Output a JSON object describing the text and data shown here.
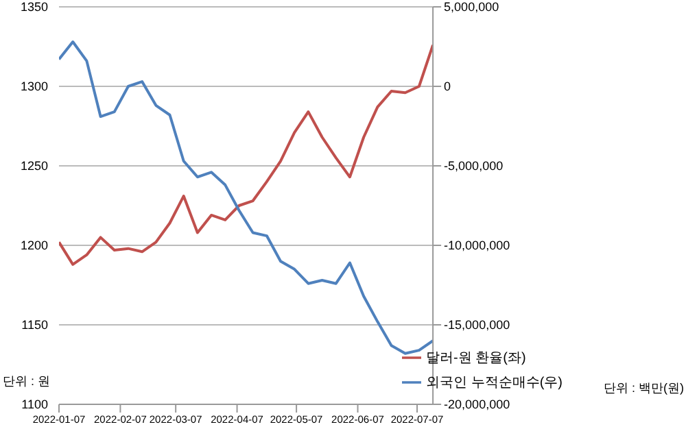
{
  "chart_data": {
    "type": "line",
    "x": [
      "2022-01-07",
      "2022-01-14",
      "2022-01-21",
      "2022-01-28",
      "2022-02-04",
      "2022-02-11",
      "2022-02-18",
      "2022-02-25",
      "2022-03-04",
      "2022-03-11",
      "2022-03-18",
      "2022-03-25",
      "2022-04-01",
      "2022-04-08",
      "2022-04-15",
      "2022-04-22",
      "2022-04-29",
      "2022-05-06",
      "2022-05-13",
      "2022-05-20",
      "2022-05-27",
      "2022-06-03",
      "2022-06-10",
      "2022-06-17",
      "2022-06-24",
      "2022-07-01",
      "2022-07-08",
      "2022-07-15"
    ],
    "series": [
      {
        "name": "달러-원 환율(좌)",
        "color": "#c0504d",
        "values": [
          1202,
          1188,
          1194,
          1205,
          1197,
          1198,
          1196,
          1202,
          1214,
          1231,
          1208,
          1219,
          1216,
          1225,
          1228,
          1240,
          1253,
          1271,
          1284,
          1268,
          1255,
          1243,
          1268,
          1287,
          1297,
          1296,
          1300,
          1326
        ]
      },
      {
        "name": "외국인 누적순매수(우)",
        "color": "#4f81bd",
        "axis": "y2",
        "values": [
          1700000,
          2800000,
          1600000,
          -1900000,
          -1600000,
          0,
          300000,
          -1200000,
          -1800000,
          -4700000,
          -5700000,
          -5400000,
          -6200000,
          -7800000,
          -9200000,
          -9400000,
          -11000000,
          -11500000,
          -12400000,
          -12200000,
          -12400000,
          -11100000,
          -13200000,
          -14800000,
          -16300000,
          -16800000,
          -16600000,
          -16000000
        ]
      }
    ],
    "xlim": [
      "2022-01-07",
      "2022-07-15"
    ],
    "xticks": [
      "2022-01-07",
      "2022-02-07",
      "2022-03-07",
      "2022-04-07",
      "2022-05-07",
      "2022-06-07",
      "2022-07-07"
    ],
    "ylim": [
      1100,
      1350
    ],
    "yticks": [
      1100,
      1150,
      1200,
      1250,
      1300,
      1350
    ],
    "y2lim": [
      -20000000,
      5000000
    ],
    "y2ticks": [
      {
        "value": -20000000,
        "label": "-20,000,000"
      },
      {
        "value": -15000000,
        "label": "-15,000,000"
      },
      {
        "value": -10000000,
        "label": "-10,000,000"
      },
      {
        "value": -5000000,
        "label": "-5,000,000"
      },
      0,
      {
        "value": 5000000,
        "label": "5,000,000"
      }
    ],
    "grid": "y",
    "legend": "bottom right",
    "marker": "none",
    "line_style": "solid",
    "annotations": [
      "단위 : 원",
      "단위 : 백만(원)"
    ]
  }
}
